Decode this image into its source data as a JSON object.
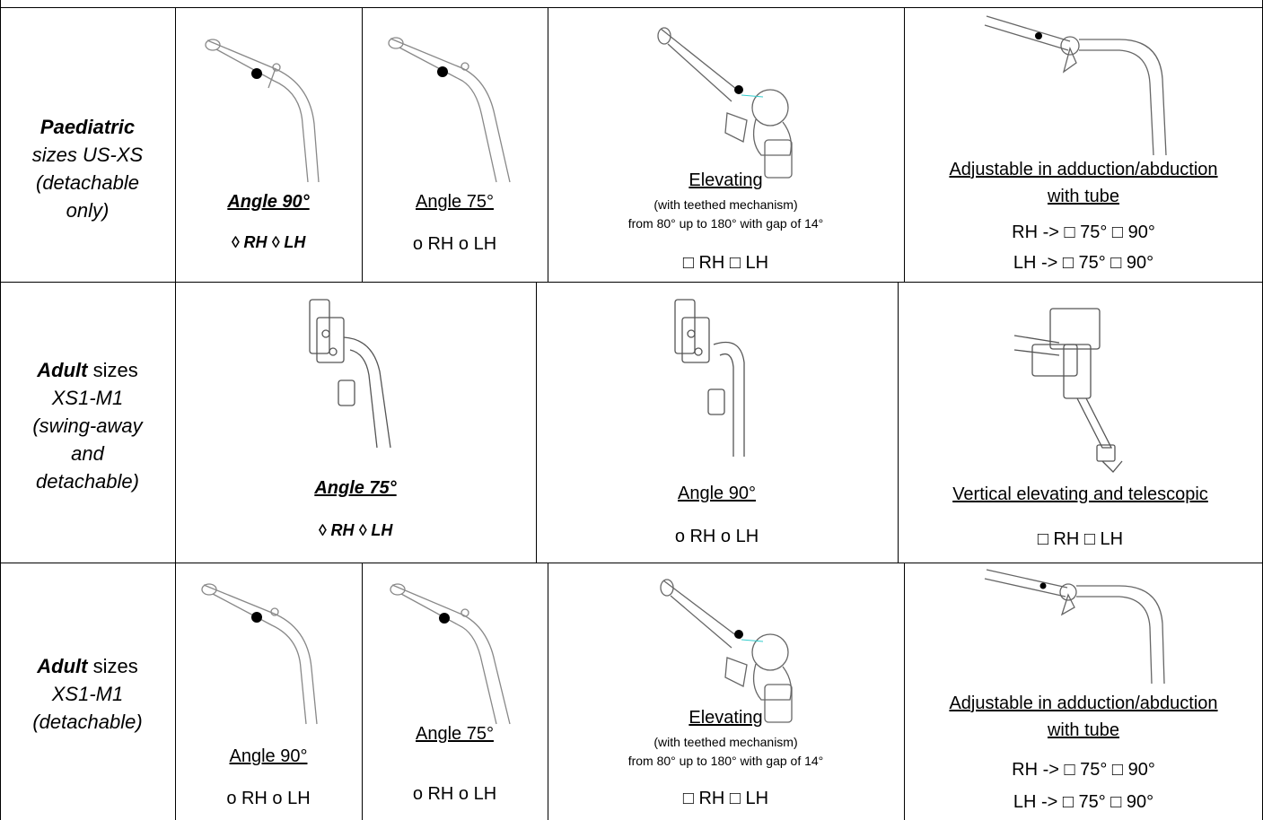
{
  "rows": [
    {
      "header_bold": "Paediatric",
      "header_lines": [
        "sizes US-XS",
        "(detachable",
        "only)"
      ],
      "cells": [
        {
          "label": "Angle 90°",
          "options": "◊ RH    ◊ LH"
        },
        {
          "label": "Angle 75°",
          "options": "o  RH    o  LH"
        },
        {
          "label": "Elevating",
          "note1": "(with teethed mechanism)",
          "note2": "from 80° up to 180° with gap of 14°",
          "options": "□  RH     □  LH"
        },
        {
          "label1": "Adjustable in adduction/abduction",
          "label2": "with tube",
          "opt1": "RH  -> □ 75° □ 90°",
          "opt2": "LH  -> □ 75° □ 90°"
        }
      ]
    },
    {
      "header_bold": "Adult",
      "header_rest": " sizes",
      "header_lines": [
        "XS1-M1",
        "(swing-away",
        "and",
        "detachable)"
      ],
      "cells": [
        {
          "label": "Angle 75°",
          "options": "◊ RH      ◊ LH"
        },
        {
          "label": "Angle 90°",
          "options": "o  RH     o  LH"
        },
        {
          "label": "Vertical elevating and telescopic",
          "options": "□  RH     □  LH"
        }
      ]
    },
    {
      "header_bold": "Adult",
      "header_rest": " sizes",
      "header_lines": [
        "XS1-M1",
        "(detachable)"
      ],
      "cells": [
        {
          "label": "Angle 90°",
          "options": "o  RH    o  LH"
        },
        {
          "label": "Angle 75°",
          "options": "o  RH    o  LH"
        },
        {
          "label": "Elevating",
          "note1": "(with teethed mechanism)",
          "note2": "from 80° up to 180° with gap of 14°",
          "options": "□  RH     □  LH"
        },
        {
          "label1": "Adjustable in adduction/abduction",
          "label2": "with tube",
          "opt1": "RH  -> □ 75° □ 90°",
          "opt2": "LH  -> □ 75° □ 90°"
        }
      ]
    }
  ]
}
